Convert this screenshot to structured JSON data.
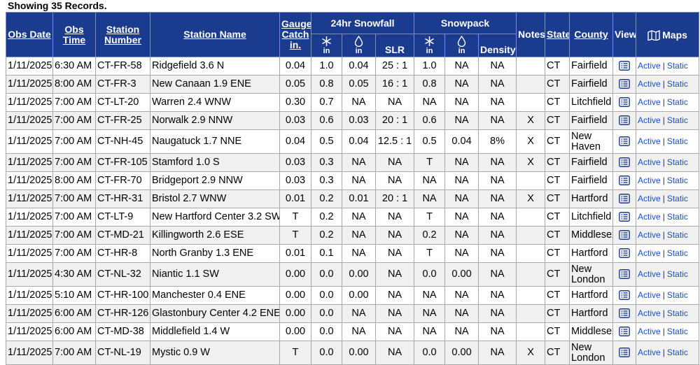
{
  "records_label": "Showing 35 Records.",
  "headers": {
    "obs_date": "Obs Date",
    "obs_time": "Obs Time",
    "station_number": "Station Number",
    "station_name": "Station Name",
    "gauge_catch": "Gauge Catch in.",
    "snowfall_group": "24hr Snowfall",
    "snowpack_group": "Snowpack",
    "in_label": "in",
    "slr": "SLR",
    "density": "Density",
    "notes": "Notes",
    "state": "State",
    "county": "County",
    "view": "View",
    "maps": "Maps"
  },
  "link_labels": {
    "active": "Active",
    "static": "Static"
  },
  "colors": {
    "header_bg": "#1b3c8e",
    "link": "#1a4fc2"
  },
  "rows": [
    {
      "date": "1/11/2025",
      "time": "6:30 AM",
      "station": "CT-FR-58",
      "name": "Ridgefield 3.6 N",
      "gauge": "0.04",
      "snow": "1.0",
      "snow_swe": "0.04",
      "slr": "25 : 1",
      "pack": "1.0",
      "pack_swe": "NA",
      "density": "NA",
      "notes": "",
      "state": "CT",
      "county": "Fairfield"
    },
    {
      "date": "1/11/2025",
      "time": "8:00 AM",
      "station": "CT-FR-3",
      "name": "New Canaan 1.9 ENE",
      "gauge": "0.05",
      "snow": "0.8",
      "snow_swe": "0.05",
      "slr": "16 : 1",
      "pack": "0.8",
      "pack_swe": "NA",
      "density": "NA",
      "notes": "",
      "state": "CT",
      "county": "Fairfield"
    },
    {
      "date": "1/11/2025",
      "time": "7:00 AM",
      "station": "CT-LT-20",
      "name": "Warren 2.4 WNW",
      "gauge": "0.30",
      "snow": "0.7",
      "snow_swe": "NA",
      "slr": "NA",
      "pack": "NA",
      "pack_swe": "NA",
      "density": "NA",
      "notes": "",
      "state": "CT",
      "county": "Litchfield"
    },
    {
      "date": "1/11/2025",
      "time": "7:00 AM",
      "station": "CT-FR-25",
      "name": "Norwalk 2.9 NNW",
      "gauge": "0.03",
      "snow": "0.6",
      "snow_swe": "0.03",
      "slr": "20 : 1",
      "pack": "0.6",
      "pack_swe": "NA",
      "density": "NA",
      "notes": "X",
      "state": "CT",
      "county": "Fairfield"
    },
    {
      "date": "1/11/2025",
      "time": "7:00 AM",
      "station": "CT-NH-45",
      "name": "Naugatuck 1.7 NNE",
      "gauge": "0.04",
      "snow": "0.5",
      "snow_swe": "0.04",
      "slr": "12.5 : 1",
      "pack": "0.5",
      "pack_swe": "0.04",
      "density": "8%",
      "notes": "X",
      "state": "CT",
      "county": "New Haven",
      "tall": true
    },
    {
      "date": "1/11/2025",
      "time": "7:00 AM",
      "station": "CT-FR-105",
      "name": "Stamford 1.0 S",
      "gauge": "0.03",
      "snow": "0.3",
      "snow_swe": "NA",
      "slr": "NA",
      "pack": "T",
      "pack_swe": "NA",
      "density": "NA",
      "notes": "X",
      "state": "CT",
      "county": "Fairfield"
    },
    {
      "date": "1/11/2025",
      "time": "8:00 AM",
      "station": "CT-FR-70",
      "name": "Bridgeport 2.9 NNW",
      "gauge": "0.03",
      "snow": "0.3",
      "snow_swe": "NA",
      "slr": "NA",
      "pack": "NA",
      "pack_swe": "NA",
      "density": "NA",
      "notes": "",
      "state": "CT",
      "county": "Fairfield"
    },
    {
      "date": "1/11/2025",
      "time": "7:00 AM",
      "station": "CT-HR-31",
      "name": "Bristol 2.7 WNW",
      "gauge": "0.01",
      "snow": "0.2",
      "snow_swe": "0.01",
      "slr": "20 : 1",
      "pack": "NA",
      "pack_swe": "NA",
      "density": "NA",
      "notes": "X",
      "state": "CT",
      "county": "Hartford"
    },
    {
      "date": "1/11/2025",
      "time": "7:00 AM",
      "station": "CT-LT-9",
      "name": "New Hartford Center 3.2 SW",
      "gauge": "T",
      "snow": "0.2",
      "snow_swe": "NA",
      "slr": "NA",
      "pack": "T",
      "pack_swe": "NA",
      "density": "NA",
      "notes": "",
      "state": "CT",
      "county": "Litchfield"
    },
    {
      "date": "1/11/2025",
      "time": "7:00 AM",
      "station": "CT-MD-21",
      "name": "Killingworth 2.6 ESE",
      "gauge": "T",
      "snow": "0.2",
      "snow_swe": "NA",
      "slr": "NA",
      "pack": "0.2",
      "pack_swe": "NA",
      "density": "NA",
      "notes": "",
      "state": "CT",
      "county": "Middlesex"
    },
    {
      "date": "1/11/2025",
      "time": "7:00 AM",
      "station": "CT-HR-8",
      "name": "North Granby 1.3 ENE",
      "gauge": "0.01",
      "snow": "0.1",
      "snow_swe": "NA",
      "slr": "NA",
      "pack": "T",
      "pack_swe": "NA",
      "density": "NA",
      "notes": "",
      "state": "CT",
      "county": "Hartford"
    },
    {
      "date": "1/11/2025",
      "time": "4:30 AM",
      "station": "CT-NL-32",
      "name": "Niantic 1.1 SW",
      "gauge": "0.00",
      "snow": "0.0",
      "snow_swe": "0.00",
      "slr": "NA",
      "pack": "0.0",
      "pack_swe": "0.00",
      "density": "NA",
      "notes": "",
      "state": "CT",
      "county": "New London",
      "tall": true
    },
    {
      "date": "1/11/2025",
      "time": "5:10 AM",
      "station": "CT-HR-100",
      "name": "Manchester 0.4 ENE",
      "gauge": "0.00",
      "snow": "0.0",
      "snow_swe": "0.00",
      "slr": "NA",
      "pack": "NA",
      "pack_swe": "NA",
      "density": "NA",
      "notes": "",
      "state": "CT",
      "county": "Hartford"
    },
    {
      "date": "1/11/2025",
      "time": "6:00 AM",
      "station": "CT-HR-126",
      "name": "Glastonbury Center 4.2 ENE",
      "gauge": "0.00",
      "snow": "0.0",
      "snow_swe": "NA",
      "slr": "NA",
      "pack": "NA",
      "pack_swe": "NA",
      "density": "NA",
      "notes": "",
      "state": "CT",
      "county": "Hartford"
    },
    {
      "date": "1/11/2025",
      "time": "6:00 AM",
      "station": "CT-MD-38",
      "name": "Middlefield 1.4 W",
      "gauge": "0.00",
      "snow": "0.0",
      "snow_swe": "NA",
      "slr": "NA",
      "pack": "NA",
      "pack_swe": "NA",
      "density": "NA",
      "notes": "",
      "state": "CT",
      "county": "Middlesex"
    },
    {
      "date": "1/11/2025",
      "time": "7:00 AM",
      "station": "CT-NL-19",
      "name": "Mystic 0.9 W",
      "gauge": "T",
      "snow": "0.0",
      "snow_swe": "0.00",
      "slr": "NA",
      "pack": "0.0",
      "pack_swe": "0.00",
      "density": "NA",
      "notes": "X",
      "state": "CT",
      "county": "New London",
      "tall": true
    }
  ]
}
